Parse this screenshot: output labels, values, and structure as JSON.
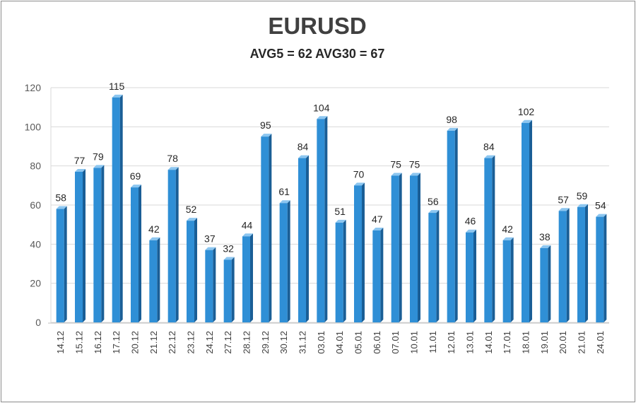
{
  "chart_data": {
    "type": "bar",
    "title": "EURUSD",
    "subtitle": "AVG5 = 62 AVG30 = 67",
    "xlabel": "",
    "ylabel": "",
    "ylim": [
      0,
      120
    ],
    "yticks": [
      "0",
      "20",
      "40",
      "60",
      "80",
      "100",
      "120"
    ],
    "grid": true,
    "categories": [
      "14.12",
      "15.12",
      "16.12",
      "17.12",
      "20.12",
      "21.12",
      "22.12",
      "23.12",
      "24.12",
      "27.12",
      "28.12",
      "29.12",
      "30.12",
      "31.12",
      "03.01",
      "04.01",
      "05.01",
      "06.01",
      "07.01",
      "10.01",
      "11.01",
      "12.01",
      "13.01",
      "14.01",
      "17.01",
      "18.01",
      "19.01",
      "20.01",
      "21.01",
      "24.01"
    ],
    "values": [
      58,
      77,
      79,
      115,
      69,
      42,
      78,
      52,
      37,
      32,
      44,
      95,
      61,
      84,
      104,
      51,
      70,
      47,
      75,
      75,
      56,
      98,
      46,
      84,
      42,
      102,
      38,
      57,
      59,
      54
    ],
    "bar_color": "#2f8fd6",
    "bar_side_color": "#1a5e96",
    "bar_top_color": "#8cc6f0"
  }
}
